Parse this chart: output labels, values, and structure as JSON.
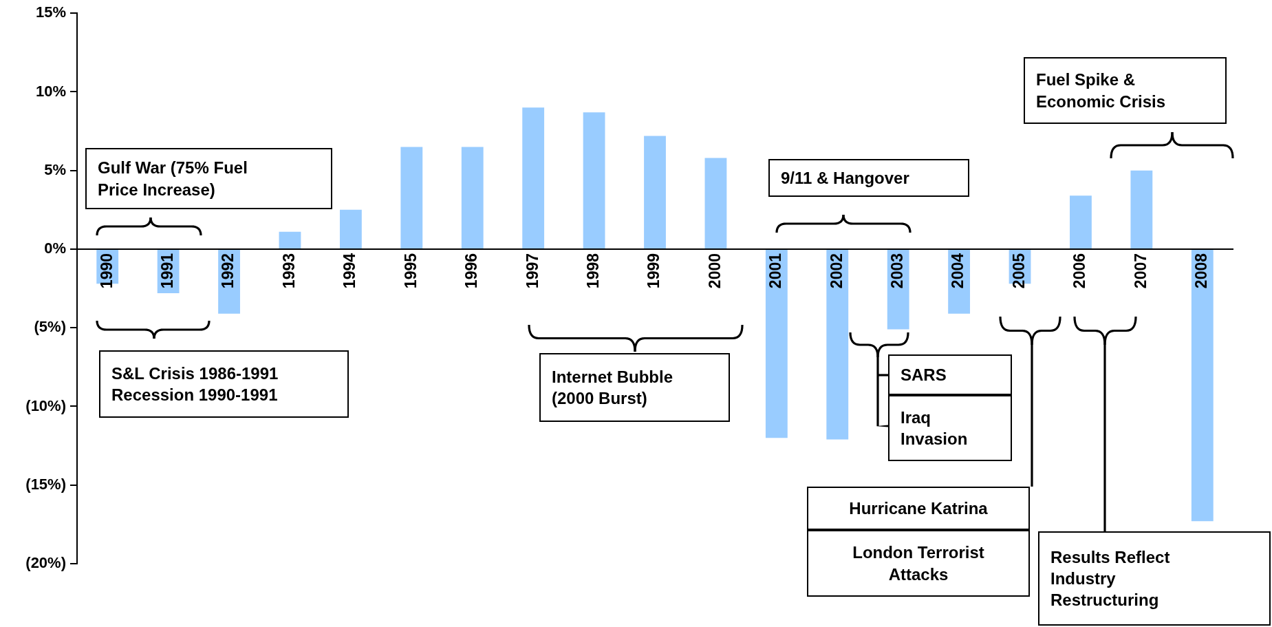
{
  "chart_data": {
    "type": "bar",
    "categories": [
      "1990",
      "1991",
      "1992",
      "1993",
      "1994",
      "1995",
      "1996",
      "1997",
      "1998",
      "1999",
      "2000",
      "2001",
      "2002",
      "2003",
      "2004",
      "2005",
      "2006",
      "2007",
      "2008"
    ],
    "values": [
      -2.2,
      -2.8,
      -4.1,
      1.1,
      2.5,
      6.5,
      6.5,
      9.0,
      8.7,
      7.2,
      5.8,
      -12.0,
      -12.1,
      -5.1,
      -4.1,
      -2.2,
      3.4,
      5.0,
      -17.3
    ],
    "color": "#99ccff",
    "ylim": [
      -20,
      15
    ],
    "yticks": [
      {
        "value": -20,
        "label": "(20%)"
      },
      {
        "value": -15,
        "label": "(15%)"
      },
      {
        "value": -10,
        "label": "(10%)"
      },
      {
        "value": -5,
        "label": "(5%)"
      },
      {
        "value": 0,
        "label": "0%"
      },
      {
        "value": 5,
        "label": "5%"
      },
      {
        "value": 10,
        "label": "10%"
      },
      {
        "value": 15,
        "label": "15%"
      }
    ],
    "grid": false,
    "legend": false,
    "annotations": [
      "Gulf War (75% Fuel\nPrice Increase)",
      "S&L Crisis 1986-1991\nRecession 1990-1991",
      "Internet Bubble\n(2000 Burst)",
      "9/11 & Hangover",
      "SARS",
      "Iraq\nInvasion",
      "Hurricane Katrina",
      "London Terrorist\nAttacks",
      "Results Reflect\nIndustry\nRestructuring",
      "Fuel Spike &\nEconomic Crisis"
    ]
  }
}
